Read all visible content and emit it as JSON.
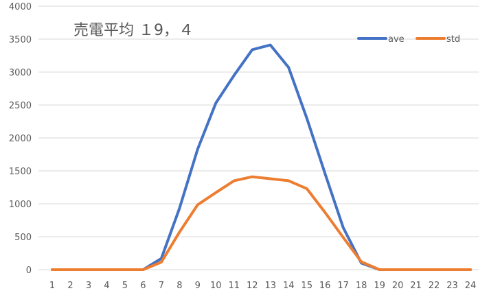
{
  "chart_data": {
    "type": "line",
    "title": "売電平均 １9，４",
    "x": [
      "1",
      "2",
      "3",
      "4",
      "5",
      "6",
      "7",
      "8",
      "9",
      "10",
      "11",
      "12",
      "13",
      "14",
      "15",
      "16",
      "17",
      "18",
      "19",
      "20",
      "21",
      "22",
      "23",
      "24"
    ],
    "ylim": [
      0,
      4000
    ],
    "yticks": [
      0,
      500,
      1000,
      1500,
      2000,
      2500,
      3000,
      3500,
      4000
    ],
    "grid": true,
    "legend": "top-right",
    "series": [
      {
        "name": "ave",
        "color": "#4472c4",
        "values": [
          0,
          0,
          0,
          0,
          0,
          0,
          170,
          930,
          1830,
          2530,
          2950,
          3340,
          3410,
          3070,
          2300,
          1460,
          640,
          100,
          0,
          0,
          0,
          0,
          0,
          0
        ]
      },
      {
        "name": "std",
        "color": "#ed7d31",
        "values": [
          0,
          0,
          0,
          0,
          0,
          0,
          115,
          570,
          985,
          1170,
          1350,
          1410,
          1380,
          1350,
          1230,
          870,
          490,
          120,
          0,
          0,
          0,
          0,
          0,
          0
        ]
      }
    ]
  }
}
